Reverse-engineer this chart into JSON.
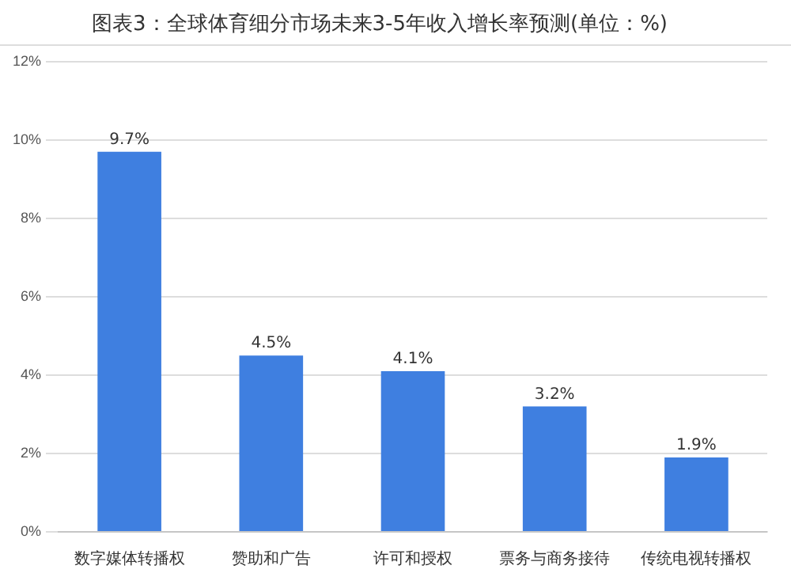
{
  "chart_data": {
    "type": "bar",
    "title": "图表3：全球体育细分市场未来3-5年收入增长率预测(单位：%)",
    "categories": [
      "数字媒体转播权",
      "赞助和广告",
      "许可和授权",
      "票务与商务接待",
      "传统电视转播权"
    ],
    "values": [
      9.7,
      4.5,
      4.1,
      3.2,
      1.9
    ],
    "value_labels": [
      "9.7%",
      "4.5%",
      "4.1%",
      "3.2%",
      "1.9%"
    ],
    "color": "#3f7fe0",
    "ylim": [
      0,
      12
    ],
    "yticks": [
      {
        "value": 0,
        "label": "0%"
      },
      {
        "value": 2,
        "label": "2%"
      },
      {
        "value": 4,
        "label": "4%"
      },
      {
        "value": 6,
        "label": "6%"
      },
      {
        "value": 8,
        "label": "8%"
      },
      {
        "value": 10,
        "label": "10%"
      },
      {
        "value": 12,
        "label": "12%"
      }
    ],
    "grid": "y",
    "legend": false
  }
}
